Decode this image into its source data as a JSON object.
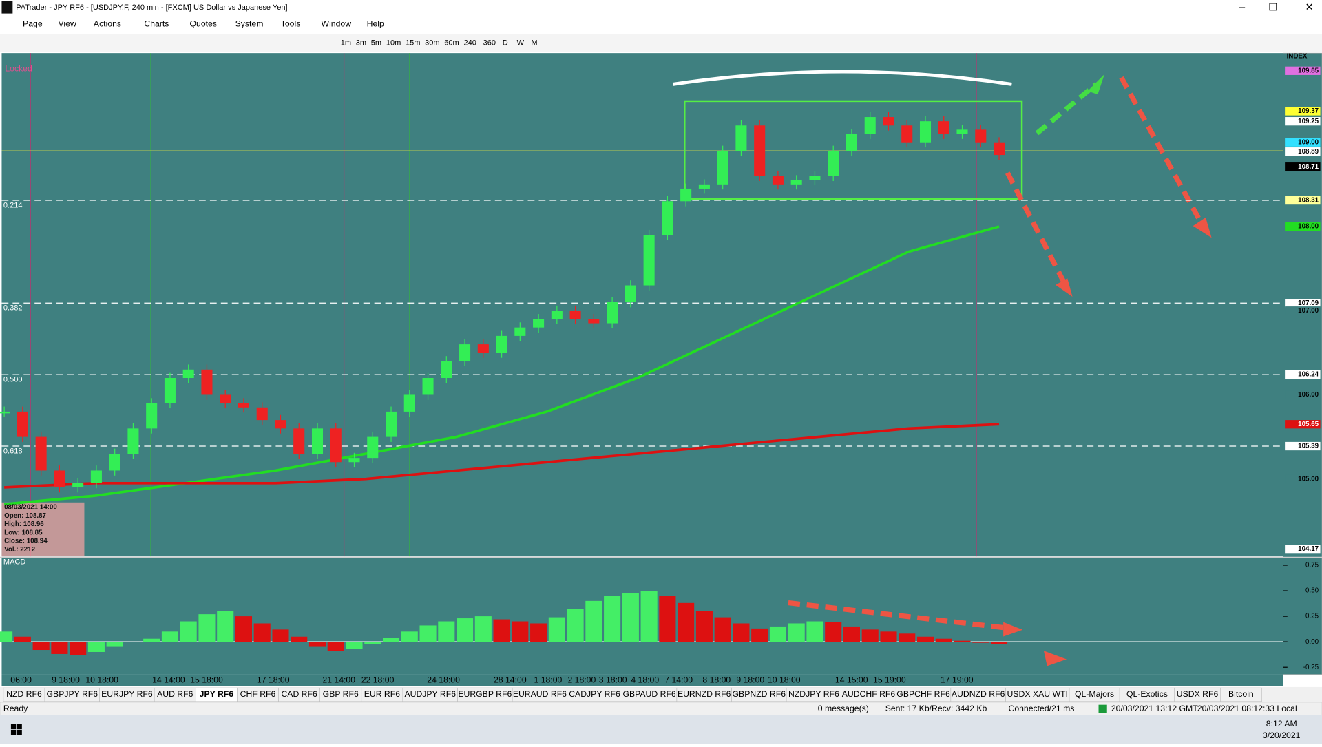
{
  "window": {
    "title": "PATrader - JPY RF6 - [USDJPY.F, 240 min - [FXCM] US Dollar vs Japanese Yen]",
    "menu": [
      "Page",
      "View",
      "Actions",
      "Charts",
      "Quotes",
      "System",
      "Tools",
      "Window",
      "Help"
    ],
    "timeframes": [
      "1m",
      "3m",
      "5m",
      "10m",
      "15m",
      "30m",
      "60m",
      "240",
      "360",
      "D",
      "W",
      "M"
    ]
  },
  "chart_data": {
    "type": "candlestick",
    "ylim": [
      104.08,
      110.06
    ],
    "locked": "Locked",
    "closes": [
      105.8,
      105.5,
      105.1,
      104.9,
      104.95,
      105.1,
      105.3,
      105.6,
      105.9,
      106.2,
      106.3,
      106.0,
      105.9,
      105.85,
      105.7,
      105.6,
      105.3,
      105.6,
      105.2,
      105.25,
      105.5,
      105.8,
      106.0,
      106.2,
      106.4,
      106.6,
      106.5,
      106.7,
      106.8,
      106.9,
      107.0,
      106.9,
      106.85,
      107.1,
      107.3,
      107.9,
      108.3,
      108.45,
      108.5,
      108.9,
      109.2,
      108.6,
      108.5,
      108.55,
      108.6,
      108.9,
      109.1,
      109.3,
      109.2,
      109.0,
      109.25,
      109.1,
      109.15,
      109.0,
      108.85
    ],
    "ma_fast": {
      "color": "#22dd22",
      "values": [
        104.7,
        104.8,
        104.95,
        105.1,
        105.3,
        105.5,
        105.8,
        106.2,
        106.7,
        107.2,
        107.7,
        108.0
      ]
    },
    "ma_slow": {
      "color": "#dd1111",
      "values": [
        104.9,
        104.95,
        104.95,
        104.95,
        105.0,
        105.1,
        105.2,
        105.3,
        105.4,
        105.5,
        105.6,
        105.65
      ]
    },
    "price_labels": [
      {
        "value": 109.85,
        "label": "109.85",
        "bg": "#e070e0"
      },
      {
        "value": 109.37,
        "label": "109.37",
        "bg": "#ffff33"
      },
      {
        "value": 109.25,
        "label": "109.25",
        "bg": "#ffffff"
      },
      {
        "value": 109.0,
        "label": "109.00",
        "bg": "#33e0ff"
      },
      {
        "value": 108.89,
        "label": "108.89",
        "bg": "#ffffff"
      },
      {
        "value": 108.71,
        "label": "108.71",
        "bg": "#000000"
      },
      {
        "value": 108.31,
        "label": "108.31",
        "bg": "#ffff99"
      },
      {
        "value": 108.0,
        "label": "108.00",
        "bg": "#22dd22"
      },
      {
        "value": 107.09,
        "label": "107.09",
        "bg": "#ffffff"
      },
      {
        "value": 107.0,
        "label": "107.00",
        "bg": "#3f8080"
      },
      {
        "value": 106.24,
        "label": "106.24",
        "bg": "#ffffff"
      },
      {
        "value": 106.0,
        "label": "106.00",
        "bg": "#3f8080"
      },
      {
        "value": 105.65,
        "label": "105.65",
        "bg": "#dd1111"
      },
      {
        "value": 105.39,
        "label": "105.39",
        "bg": "#ffffff"
      },
      {
        "value": 105.0,
        "label": "105.00",
        "bg": "#3f8080"
      },
      {
        "value": 104.17,
        "label": "104.17",
        "bg": "#ffffff"
      }
    ],
    "axis_title": "INDEX",
    "fib": [
      {
        "label": "0.214",
        "price": 108.31
      },
      {
        "label": "0.382",
        "price": 107.09
      },
      {
        "label": "0.500",
        "price": 106.24
      },
      {
        "label": "0.618",
        "price": 105.39
      }
    ],
    "info": [
      "08/03/2021 14:00",
      "Open: 108.87",
      "High: 108.96",
      "Low: 108.85",
      "Close: 108.94",
      "Vol.: 2212"
    ],
    "times": [
      "06:00",
      "9 18:00",
      "10 18:00",
      "14 14:00",
      "15 18:00",
      "17 18:00",
      "21 14:00",
      "22 18:00",
      "24 18:00",
      "28 14:00",
      "1 18:00",
      "2 18:00",
      "3 18:00",
      "4 18:00",
      "7 14:00",
      "8 18:00",
      "9 18:00",
      "10 18:00",
      "14 15:00",
      "15 19:00",
      "17 19:00"
    ],
    "macd": {
      "name": "MACD",
      "ylim": [
        -0.32,
        0.82
      ],
      "yticks": [
        0.75,
        {
          "value": 0.5,
          "label": "0.50"
        },
        0.25,
        {
          "value": 0,
          "label": "0.00"
        },
        -0.25
      ],
      "values": [
        0.1,
        0.05,
        -0.08,
        -0.12,
        -0.13,
        -0.1,
        -0.05,
        0.0,
        0.03,
        0.1,
        0.2,
        0.27,
        0.3,
        0.25,
        0.18,
        0.12,
        0.05,
        -0.05,
        -0.09,
        -0.07,
        -0.02,
        0.04,
        0.1,
        0.16,
        0.2,
        0.23,
        0.25,
        0.22,
        0.2,
        0.18,
        0.24,
        0.32,
        0.4,
        0.45,
        0.48,
        0.5,
        0.45,
        0.38,
        0.3,
        0.24,
        0.18,
        0.13,
        0.15,
        0.18,
        0.2,
        0.19,
        0.15,
        0.12,
        0.1,
        0.08,
        0.05,
        0.03,
        0.01,
        -0.01,
        -0.02
      ]
    }
  },
  "tabs": [
    "NZD RF6",
    "GBPJPY RF6",
    "EURJPY RF6",
    "AUD RF6",
    "JPY RF6",
    "CHF RF6",
    "CAD RF6",
    "GBP RF6",
    "EUR RF6",
    "AUDJPY RF6",
    "EURGBP RF6",
    "EURAUD RF6",
    "CADJPY RF6",
    "GBPAUD RF6",
    "EURNZD RF6",
    "GBPNZD RF6",
    "NZDJPY RF6",
    "AUDCHF RF6",
    "GBPCHF RF6",
    "AUDNZD RF6",
    "USDX XAU WTI",
    "QL-Majors",
    "QL-Exotics",
    "USDX RF6",
    "Bitcoin"
  ],
  "active_tab": "JPY RF6",
  "status": {
    "ready": "Ready",
    "messages": "0 message(s)",
    "traffic": "Sent: 17 Kb/Recv: 3442 Kb",
    "connection": "Connected/21 ms",
    "gmt": "20/03/2021 13:12 GMT",
    "local": "20/03/2021 08:12:33 Local"
  },
  "taskbar": {
    "time": "8:12 AM",
    "date": "3/20/2021"
  }
}
